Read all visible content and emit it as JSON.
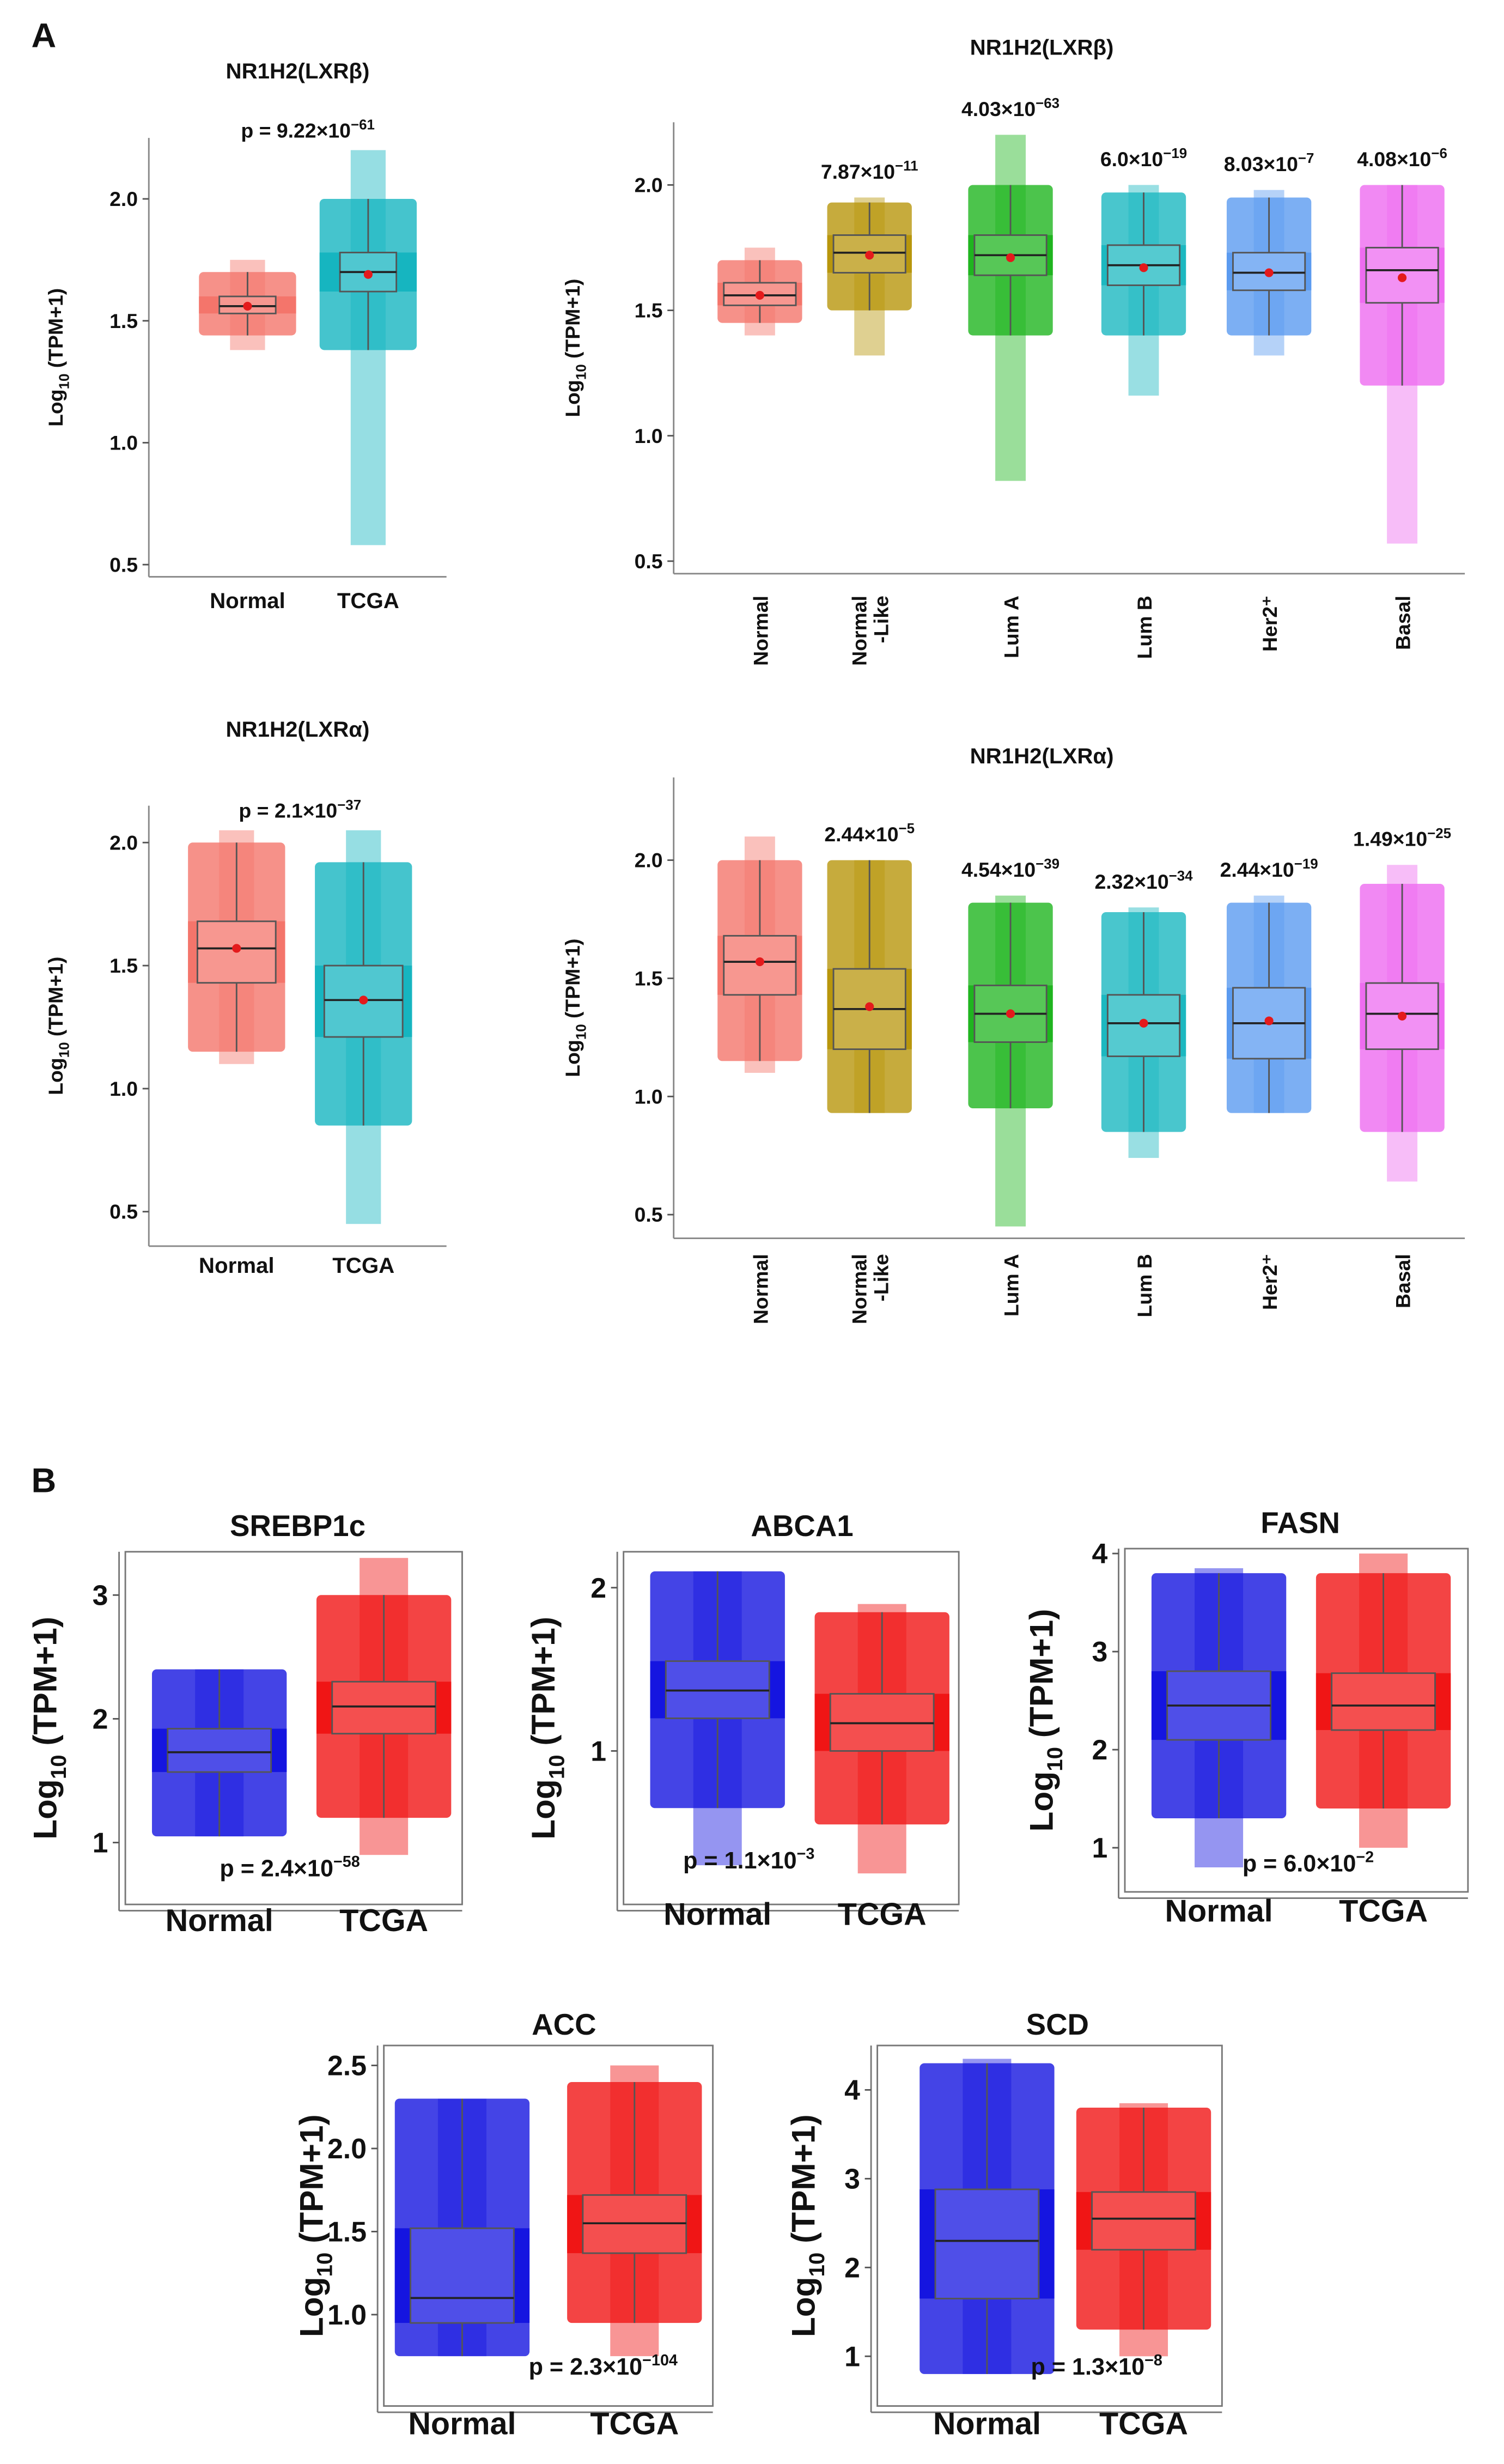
{
  "panel_labels": [
    "A",
    "B"
  ],
  "chart_data": [
    {
      "type": "box",
      "title": "NR1H2(LXRβ)",
      "ylabel": [
        "Log",
        "10",
        " (TPM+1)"
      ],
      "p_label": [
        "p = 9.22×10",
        "−61"
      ],
      "categories": [
        "Normal",
        "TCGA"
      ],
      "colors": [
        "#f4756b",
        "#16b5c0"
      ],
      "boxes": {
        "q1": [
          1.53,
          1.62
        ],
        "median": [
          1.56,
          1.7
        ],
        "q3": [
          1.6,
          1.78
        ],
        "whisker_low": [
          1.44,
          1.38
        ],
        "whisker_high": [
          1.7,
          2.0
        ],
        "mean": [
          1.56,
          1.69
        ],
        "min": [
          1.38,
          0.58
        ],
        "max": [
          1.75,
          2.2
        ]
      },
      "ylim": [
        0.45,
        2.25
      ],
      "yticks": [
        {
          "value": 2,
          "label": "2.0"
        },
        1.5,
        {
          "value": 1,
          "label": "1.0"
        },
        0.5
      ]
    },
    {
      "type": "box",
      "title": "NR1H2(LXRβ)",
      "ylabel": [
        "Log",
        "10",
        " (TPM+1)"
      ],
      "categories": [
        "Normal",
        "Normal\n-Like",
        "Lum A",
        "Lum B",
        "Her2⁺",
        "Basal"
      ],
      "colors": [
        "#f4756b",
        "#b8960c",
        "#1fb51f",
        "#1cb8c0",
        "#5b9bf0",
        "#ee6cf0"
      ],
      "annotations": [
        null,
        [
          "7.87×10",
          "−11"
        ],
        [
          "4.03×10",
          "−63"
        ],
        [
          "6.0×10",
          "−19"
        ],
        [
          "8.03×10",
          "−7"
        ],
        [
          "4.08×10",
          "−6"
        ]
      ],
      "boxes": {
        "q1": [
          1.52,
          1.65,
          1.64,
          1.6,
          1.58,
          1.53
        ],
        "median": [
          1.56,
          1.73,
          1.72,
          1.68,
          1.65,
          1.66
        ],
        "q3": [
          1.61,
          1.8,
          1.8,
          1.76,
          1.73,
          1.75
        ],
        "whisker_low": [
          1.45,
          1.5,
          1.4,
          1.4,
          1.4,
          1.2
        ],
        "whisker_high": [
          1.7,
          1.93,
          2.0,
          1.97,
          1.95,
          2.0
        ],
        "mean": [
          1.56,
          1.72,
          1.71,
          1.67,
          1.65,
          1.63
        ],
        "min": [
          1.4,
          1.32,
          0.82,
          1.16,
          1.32,
          0.57
        ],
        "max": [
          1.75,
          1.95,
          2.2,
          2.0,
          1.98,
          2.0
        ]
      },
      "ylim": [
        0.45,
        2.25
      ],
      "yticks": [
        {
          "value": 2,
          "label": "2.0"
        },
        1.5,
        {
          "value": 1,
          "label": "1.0"
        },
        0.5
      ]
    },
    {
      "type": "box",
      "title": "NR1H2(LXRα)",
      "ylabel": [
        "Log",
        "10",
        " (TPM+1)"
      ],
      "p_label": [
        "p = 2.1×10",
        "−37"
      ],
      "categories": [
        "Normal",
        "TCGA"
      ],
      "colors": [
        "#f4756b",
        "#16b5c0"
      ],
      "boxes": {
        "q1": [
          1.43,
          1.21
        ],
        "median": [
          1.57,
          1.36
        ],
        "q3": [
          1.68,
          1.5
        ],
        "whisker_low": [
          1.15,
          0.85
        ],
        "whisker_high": [
          2.0,
          1.92
        ],
        "mean": [
          1.57,
          1.36
        ],
        "min": [
          1.1,
          0.45
        ],
        "max": [
          2.05,
          2.05
        ]
      },
      "ylim": [
        0.36,
        2.15
      ],
      "yticks": [
        {
          "value": 2,
          "label": "2.0"
        },
        1.5,
        {
          "value": 1,
          "label": "1.0"
        },
        0.5
      ]
    },
    {
      "type": "box",
      "title": "NR1H2(LXRα)",
      "ylabel": [
        "Log",
        "10",
        " (TPM+1)"
      ],
      "categories": [
        "Normal",
        "Normal\n-Like",
        "Lum A",
        "Lum B",
        "Her2⁺",
        "Basal"
      ],
      "colors": [
        "#f4756b",
        "#b8960c",
        "#1fb51f",
        "#1cb8c0",
        "#5b9bf0",
        "#ee6cf0"
      ],
      "annotations": [
        null,
        [
          "2.44×10",
          "−5"
        ],
        [
          "4.54×10",
          "−39"
        ],
        [
          "2.32×10",
          "−34"
        ],
        [
          "2.44×10",
          "−19"
        ],
        [
          "1.49×10",
          "−25"
        ]
      ],
      "boxes": {
        "q1": [
          1.43,
          1.2,
          1.23,
          1.17,
          1.16,
          1.2
        ],
        "median": [
          1.57,
          1.37,
          1.35,
          1.31,
          1.31,
          1.35
        ],
        "q3": [
          1.68,
          1.54,
          1.47,
          1.43,
          1.46,
          1.48
        ],
        "whisker_low": [
          1.15,
          0.93,
          0.95,
          0.85,
          0.93,
          0.85
        ],
        "whisker_high": [
          2.0,
          2.0,
          1.82,
          1.78,
          1.82,
          1.9
        ],
        "mean": [
          1.57,
          1.38,
          1.35,
          1.31,
          1.32,
          1.34
        ],
        "min": [
          1.1,
          0.93,
          0.45,
          0.74,
          0.93,
          0.64
        ],
        "max": [
          2.1,
          2.0,
          1.85,
          1.8,
          1.85,
          1.98
        ]
      },
      "ylim": [
        0.4,
        2.35
      ],
      "yticks": [
        {
          "value": 2,
          "label": "2.0"
        },
        1.5,
        {
          "value": 1,
          "label": "1.0"
        },
        0.5
      ]
    },
    {
      "type": "box",
      "title": "SREBP1c",
      "ylabel": [
        "Log",
        "10",
        " (TPM+1)"
      ],
      "p_label": [
        "p = 2.4×10",
        "−58"
      ],
      "categories": [
        "Normal",
        "TCGA"
      ],
      "colors": [
        "#1515e0",
        "#f01515"
      ],
      "boxes": {
        "q1": [
          1.57,
          1.88
        ],
        "median": [
          1.73,
          2.1
        ],
        "q3": [
          1.92,
          2.3
        ],
        "whisker_low": [
          1.05,
          1.2
        ],
        "whisker_high": [
          2.4,
          3.0
        ],
        "min": [
          1.05,
          0.9
        ],
        "max": [
          2.4,
          3.3
        ]
      },
      "ylim": [
        0.5,
        3.35
      ],
      "yticks": [
        3,
        2,
        1
      ]
    },
    {
      "type": "box",
      "title": "ABCA1",
      "ylabel": [
        "Log",
        "10",
        " (TPM+1)"
      ],
      "p_label": [
        "p = 1.1×10",
        "−3"
      ],
      "categories": [
        "Normal",
        "TCGA"
      ],
      "colors": [
        "#1515e0",
        "#f01515"
      ],
      "boxes": {
        "q1": [
          1.2,
          1.0
        ],
        "median": [
          1.37,
          1.17
        ],
        "q3": [
          1.55,
          1.35
        ],
        "whisker_low": [
          0.65,
          0.55
        ],
        "whisker_high": [
          2.1,
          1.85
        ],
        "min": [
          0.3,
          0.25
        ],
        "max": [
          2.1,
          1.9
        ]
      },
      "ylim": [
        0.06,
        2.22
      ],
      "yticks": [
        2,
        1
      ]
    },
    {
      "type": "box",
      "title": "FASN",
      "ylabel": [
        "Log",
        "10",
        " (TPM+1)"
      ],
      "p_label": [
        "p = 6.0×10",
        "−2"
      ],
      "categories": [
        "Normal",
        "TCGA"
      ],
      "colors": [
        "#1515e0",
        "#f01515"
      ],
      "boxes": {
        "q1": [
          2.1,
          2.2
        ],
        "median": [
          2.45,
          2.45
        ],
        "q3": [
          2.8,
          2.78
        ],
        "whisker_low": [
          1.3,
          1.4
        ],
        "whisker_high": [
          3.8,
          3.8
        ],
        "min": [
          0.8,
          1.0
        ],
        "max": [
          3.85,
          4.0
        ]
      },
      "ylim": [
        0.55,
        4.05
      ],
      "yticks": [
        4,
        3,
        2,
        1
      ]
    },
    {
      "type": "box",
      "title": "ACC",
      "ylabel": [
        "Log",
        "10",
        " (TPM+1)"
      ],
      "p_label": [
        "p = 2.3×10",
        "−104"
      ],
      "categories": [
        "Normal",
        "TCGA"
      ],
      "colors": [
        "#1515e0",
        "#f01515"
      ],
      "boxes": {
        "q1": [
          0.95,
          1.37
        ],
        "median": [
          1.1,
          1.55
        ],
        "q3": [
          1.52,
          1.72
        ],
        "whisker_low": [
          0.75,
          0.95
        ],
        "whisker_high": [
          2.3,
          2.4
        ],
        "min": [
          0.75,
          0.75
        ],
        "max": [
          2.3,
          2.5
        ]
      },
      "ylim": [
        0.45,
        2.62
      ],
      "yticks": [
        2.5,
        {
          "value": 2,
          "label": "2.0"
        },
        1.5,
        {
          "value": 1,
          "label": "1.0"
        }
      ]
    },
    {
      "type": "box",
      "title": "SCD",
      "ylabel": [
        "Log",
        "10",
        " (TPM+1)"
      ],
      "p_label": [
        "p = 1.3×10",
        "−8"
      ],
      "categories": [
        "Normal",
        "TCGA"
      ],
      "colors": [
        "#1515e0",
        "#f01515"
      ],
      "boxes": {
        "q1": [
          1.65,
          2.2
        ],
        "median": [
          2.3,
          2.55
        ],
        "q3": [
          2.88,
          2.85
        ],
        "whisker_low": [
          0.8,
          1.3
        ],
        "whisker_high": [
          4.3,
          3.8
        ],
        "min": [
          0.8,
          1.0
        ],
        "max": [
          4.35,
          3.85
        ]
      },
      "ylim": [
        0.44,
        4.5
      ],
      "yticks": [
        4,
        3,
        2,
        1
      ]
    }
  ]
}
